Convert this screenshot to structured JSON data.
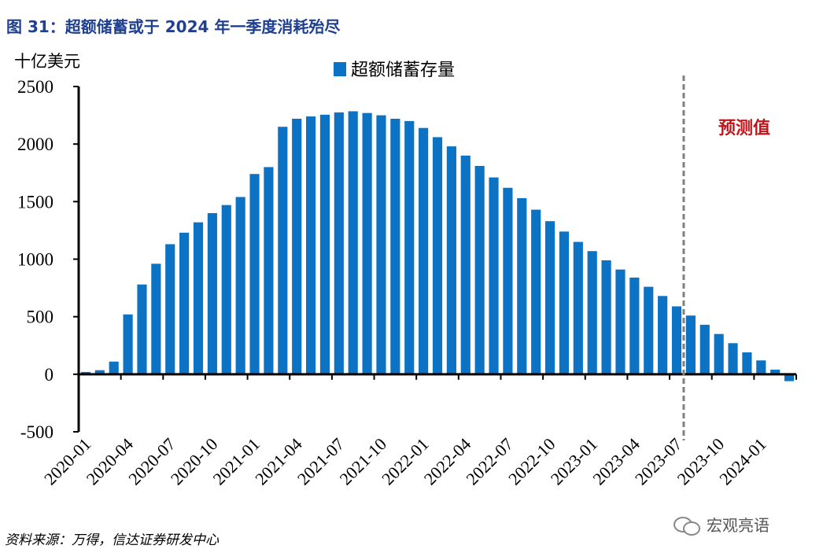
{
  "title": "图 31：超额储蓄或于 2024 年一季度消耗殆尽",
  "unit": "十亿美元",
  "source": "资料来源：万得，信达证券研发中心",
  "watermark": "宏观亮语",
  "colors": {
    "bar": "#0b72c4",
    "title": "#1f3f8f",
    "annotation": "#c0151b",
    "divider": "#808080"
  },
  "chart_data": {
    "type": "bar",
    "legend": "超额储蓄存量",
    "legend_position": "top-center",
    "annotation": "预测值",
    "divider_after": "2023-07",
    "ylim": [
      -500,
      2500
    ],
    "yticks": [
      -500,
      0,
      500,
      1000,
      1500,
      2000,
      2500
    ],
    "xtick_labels": [
      "2020-01",
      "2020-04",
      "2020-07",
      "2020-10",
      "2021-01",
      "2021-04",
      "2021-07",
      "2021-10",
      "2022-01",
      "2022-04",
      "2022-07",
      "2022-10",
      "2023-01",
      "2023-04",
      "2023-07",
      "2023-10",
      "2024-01"
    ],
    "grid": false,
    "categories": [
      "2020-01",
      "2020-02",
      "2020-03",
      "2020-04",
      "2020-05",
      "2020-06",
      "2020-07",
      "2020-08",
      "2020-09",
      "2020-10",
      "2020-11",
      "2020-12",
      "2021-01",
      "2021-02",
      "2021-03",
      "2021-04",
      "2021-05",
      "2021-06",
      "2021-07",
      "2021-08",
      "2021-09",
      "2021-10",
      "2021-11",
      "2021-12",
      "2022-01",
      "2022-02",
      "2022-03",
      "2022-04",
      "2022-05",
      "2022-06",
      "2022-07",
      "2022-08",
      "2022-09",
      "2022-10",
      "2022-11",
      "2022-12",
      "2023-01",
      "2023-02",
      "2023-03",
      "2023-04",
      "2023-05",
      "2023-06",
      "2023-07",
      "2023-08",
      "2023-09",
      "2023-10",
      "2023-11",
      "2023-12",
      "2024-01",
      "2024-02",
      "2024-03"
    ],
    "values": [
      20,
      35,
      110,
      520,
      780,
      960,
      1130,
      1230,
      1320,
      1400,
      1470,
      1540,
      1740,
      1800,
      2150,
      2220,
      2240,
      2255,
      2275,
      2285,
      2270,
      2250,
      2220,
      2200,
      2140,
      2060,
      1980,
      1900,
      1810,
      1710,
      1620,
      1530,
      1430,
      1330,
      1240,
      1150,
      1070,
      990,
      910,
      840,
      760,
      680,
      590,
      510,
      430,
      350,
      270,
      190,
      120,
      40,
      -60
    ]
  }
}
